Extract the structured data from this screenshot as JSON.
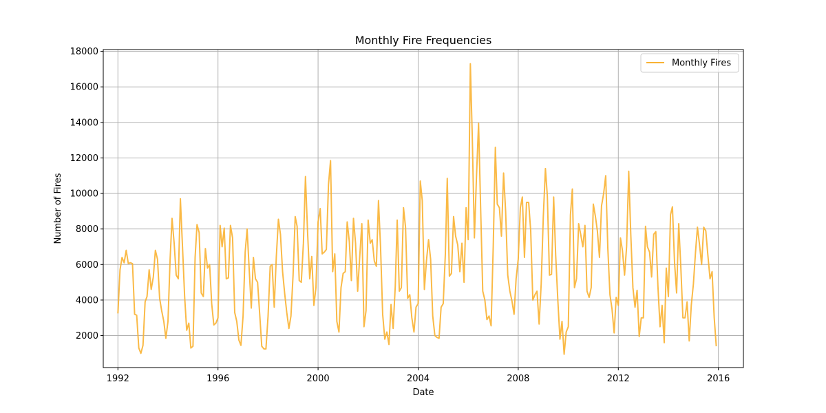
{
  "chart_data": {
    "type": "line",
    "title": "Monthly Fire Frequencies",
    "xlabel": "Date",
    "ylabel": "Number of Fires",
    "xlim": [
      "1991-06-01",
      "2016-12-31"
    ],
    "ylim": [
      200,
      18100
    ],
    "grid": true,
    "legend_position": "top-right",
    "x_ticks": [
      "1992",
      "1996",
      "2000",
      "2004",
      "2008",
      "2012",
      "2016"
    ],
    "y_ticks": [
      "2000",
      "4000",
      "6000",
      "8000",
      "10000",
      "12000",
      "14000",
      "16000",
      "18000"
    ],
    "colors": {
      "line": "#f9b233"
    },
    "series": [
      {
        "name": "Monthly Fires",
        "x": [
          "1992-01",
          "1992-02",
          "1992-03",
          "1992-04",
          "1992-05",
          "1992-06",
          "1992-07",
          "1992-08",
          "1992-09",
          "1992-10",
          "1992-11",
          "1992-12",
          "1993-01",
          "1993-02",
          "1993-03",
          "1993-04",
          "1993-05",
          "1993-06",
          "1993-07",
          "1993-08",
          "1993-09",
          "1993-10",
          "1993-11",
          "1993-12",
          "1994-01",
          "1994-02",
          "1994-03",
          "1994-04",
          "1994-05",
          "1994-06",
          "1994-07",
          "1994-08",
          "1994-09",
          "1994-10",
          "1994-11",
          "1994-12",
          "1995-01",
          "1995-02",
          "1995-03",
          "1995-04",
          "1995-05",
          "1995-06",
          "1995-07",
          "1995-08",
          "1995-09",
          "1995-10",
          "1995-11",
          "1995-12",
          "1996-01",
          "1996-02",
          "1996-03",
          "1996-04",
          "1996-05",
          "1996-06",
          "1996-07",
          "1996-08",
          "1996-09",
          "1996-10",
          "1996-11",
          "1996-12",
          "1997-01",
          "1997-02",
          "1997-03",
          "1997-04",
          "1997-05",
          "1997-06",
          "1997-07",
          "1997-08",
          "1997-09",
          "1997-10",
          "1997-11",
          "1997-12",
          "1998-01",
          "1998-02",
          "1998-03",
          "1998-04",
          "1998-05",
          "1998-06",
          "1998-07",
          "1998-08",
          "1998-09",
          "1998-10",
          "1998-11",
          "1998-12",
          "1999-01",
          "1999-02",
          "1999-03",
          "1999-04",
          "1999-05",
          "1999-06",
          "1999-07",
          "1999-08",
          "1999-09",
          "1999-10",
          "1999-11",
          "1999-12",
          "2000-01",
          "2000-02",
          "2000-03",
          "2000-04",
          "2000-05",
          "2000-06",
          "2000-07",
          "2000-08",
          "2000-09",
          "2000-10",
          "2000-11",
          "2000-12",
          "2001-01",
          "2001-02",
          "2001-03",
          "2001-04",
          "2001-05",
          "2001-06",
          "2001-07",
          "2001-08",
          "2001-09",
          "2001-10",
          "2001-11",
          "2001-12",
          "2002-01",
          "2002-02",
          "2002-03",
          "2002-04",
          "2002-05",
          "2002-06",
          "2002-07",
          "2002-08",
          "2002-09",
          "2002-10",
          "2002-11",
          "2002-12",
          "2003-01",
          "2003-02",
          "2003-03",
          "2003-04",
          "2003-05",
          "2003-06",
          "2003-07",
          "2003-08",
          "2003-09",
          "2003-10",
          "2003-11",
          "2003-12",
          "2004-01",
          "2004-02",
          "2004-03",
          "2004-04",
          "2004-05",
          "2004-06",
          "2004-07",
          "2004-08",
          "2004-09",
          "2004-10",
          "2004-11",
          "2004-12",
          "2005-01",
          "2005-02",
          "2005-03",
          "2005-04",
          "2005-05",
          "2005-06",
          "2005-07",
          "2005-08",
          "2005-09",
          "2005-10",
          "2005-11",
          "2005-12",
          "2006-01",
          "2006-02",
          "2006-03",
          "2006-04",
          "2006-05",
          "2006-06",
          "2006-07",
          "2006-08",
          "2006-09",
          "2006-10",
          "2006-11",
          "2006-12",
          "2007-01",
          "2007-02",
          "2007-03",
          "2007-04",
          "2007-05",
          "2007-06",
          "2007-07",
          "2007-08",
          "2007-09",
          "2007-10",
          "2007-11",
          "2007-12",
          "2008-01",
          "2008-02",
          "2008-03",
          "2008-04",
          "2008-05",
          "2008-06",
          "2008-07",
          "2008-08",
          "2008-09",
          "2008-10",
          "2008-11",
          "2008-12",
          "2009-01",
          "2009-02",
          "2009-03",
          "2009-04",
          "2009-05",
          "2009-06",
          "2009-07",
          "2009-08",
          "2009-09",
          "2009-10",
          "2009-11",
          "2009-12",
          "2010-01",
          "2010-02",
          "2010-03",
          "2010-04",
          "2010-05",
          "2010-06",
          "2010-07",
          "2010-08",
          "2010-09",
          "2010-10",
          "2010-11",
          "2010-12",
          "2011-01",
          "2011-02",
          "2011-03",
          "2011-04",
          "2011-05",
          "2011-06",
          "2011-07",
          "2011-08",
          "2011-09",
          "2011-10",
          "2011-11",
          "2011-12",
          "2012-01",
          "2012-02",
          "2012-03",
          "2012-04",
          "2012-05",
          "2012-06",
          "2012-07",
          "2012-08",
          "2012-09",
          "2012-10",
          "2012-11",
          "2012-12",
          "2013-01",
          "2013-02",
          "2013-03",
          "2013-04",
          "2013-05",
          "2013-06",
          "2013-07",
          "2013-08",
          "2013-09",
          "2013-10",
          "2013-11",
          "2013-12",
          "2014-01",
          "2014-02",
          "2014-03",
          "2014-04",
          "2014-05",
          "2014-06",
          "2014-07",
          "2014-08",
          "2014-09",
          "2014-10",
          "2014-11",
          "2014-12",
          "2015-01",
          "2015-02",
          "2015-03",
          "2015-04",
          "2015-05",
          "2015-06",
          "2015-07",
          "2015-08",
          "2015-09",
          "2015-10",
          "2015-11",
          "2015-12"
        ],
        "y": [
          3250,
          5700,
          6400,
          6100,
          6800,
          6050,
          6100,
          6050,
          3200,
          3150,
          1300,
          1000,
          1450,
          3900,
          4200,
          5700,
          4600,
          5300,
          6800,
          6300,
          4100,
          3400,
          2800,
          1850,
          2800,
          6300,
          8600,
          7200,
          5400,
          5200,
          9700,
          7000,
          4200,
          2300,
          2700,
          1300,
          1400,
          6400,
          8250,
          7800,
          4400,
          4200,
          6900,
          5800,
          6000,
          3800,
          2600,
          2700,
          3000,
          8200,
          7000,
          8050,
          5200,
          5250,
          8200,
          7500,
          3300,
          2800,
          1750,
          1450,
          3100,
          6700,
          8000,
          5700,
          3550,
          6400,
          5200,
          5000,
          3200,
          1400,
          1250,
          1250,
          3100,
          5900,
          6000,
          3600,
          6400,
          8550,
          7700,
          5600,
          4350,
          3300,
          2400,
          3100,
          5400,
          8700,
          8150,
          5100,
          5000,
          7200,
          10950,
          7800,
          5200,
          6450,
          3700,
          4700,
          8400,
          9150,
          6600,
          6700,
          6850,
          10500,
          11850,
          5600,
          6600,
          2800,
          2200,
          4700,
          5500,
          5600,
          8400,
          7300,
          5100,
          8600,
          7200,
          4500,
          6500,
          8300,
          2500,
          3400,
          8500,
          7200,
          7400,
          6200,
          5900,
          9600,
          7000,
          3200,
          1800,
          2200,
          1500,
          3750,
          2400,
          4800,
          8500,
          4500,
          4700,
          9200,
          8100,
          4100,
          4300,
          3000,
          2200,
          3600,
          3800,
          10700,
          9600,
          4600,
          6200,
          7400,
          6300,
          3100,
          2000,
          1900,
          1850,
          3600,
          3800,
          6600,
          10850,
          5350,
          5500,
          8700,
          7600,
          7100,
          5600,
          7200,
          5000,
          9200,
          7400,
          17300,
          13200,
          7500,
          10900,
          13950,
          9200,
          4500,
          4000,
          2900,
          3100,
          2550,
          7000,
          12600,
          9400,
          9200,
          7600,
          11150,
          9000,
          5400,
          4500,
          3950,
          3200,
          5200,
          6300,
          9200,
          9800,
          6400,
          9500,
          9500,
          7900,
          4000,
          4300,
          4500,
          2650,
          4900,
          8700,
          11400,
          9850,
          5400,
          5450,
          9800,
          6500,
          4000,
          1800,
          2800,
          950,
          2200,
          2500,
          8800,
          10250,
          4700,
          5200,
          8300,
          7700,
          7000,
          8200,
          4500,
          4150,
          4700,
          9400,
          8700,
          7900,
          6400,
          9300,
          10000,
          11000,
          6900,
          4300,
          3500,
          2150,
          4150,
          3700,
          7500,
          6800,
          5400,
          7000,
          11250,
          7700,
          4700,
          3600,
          4550,
          1950,
          3000,
          3000,
          8150,
          7000,
          6700,
          5300,
          7700,
          7850,
          4800,
          2500,
          3700,
          1600,
          5800,
          4200,
          8800,
          9250,
          6100,
          4400,
          8300,
          5900,
          3000,
          3000,
          3900,
          1700,
          3700,
          4900,
          6700,
          8100,
          7100,
          6000,
          8100,
          7900,
          6500,
          5200,
          5600,
          3000,
          1400
        ]
      }
    ]
  }
}
